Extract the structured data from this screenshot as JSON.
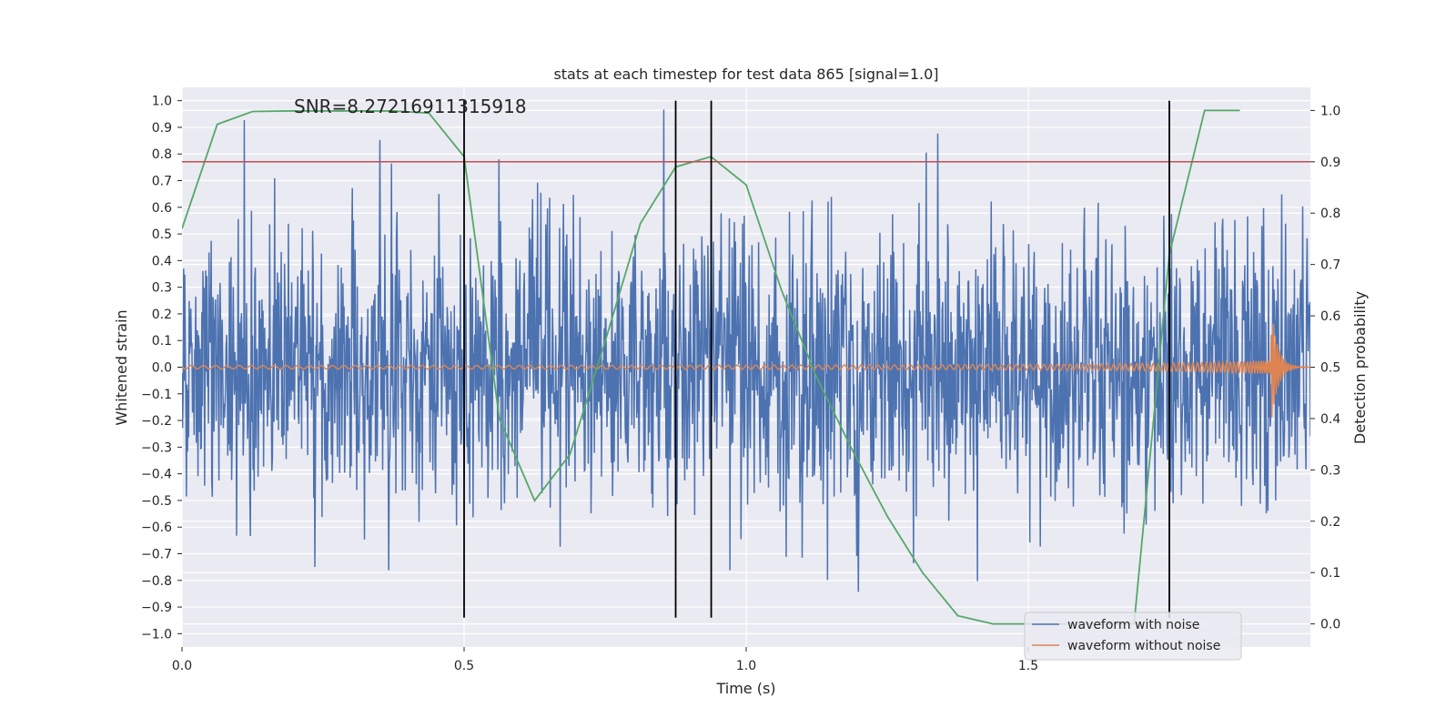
{
  "chart_data": {
    "type": "line",
    "title": "stats at each timestep for test data 865 [signal=1.0]",
    "annotation": "SNR=8.27216911315918",
    "xlabel": "Time (s)",
    "ylabel_left": "Whitened strain",
    "ylabel_right": "Detection probability",
    "xlim": [
      0.0,
      2.0
    ],
    "ylim_left": [
      -1.05,
      1.05
    ],
    "ylim_right": [
      -0.045,
      1.045
    ],
    "x_ticks": [
      0.0,
      0.5,
      1.0,
      1.5
    ],
    "x_tick_labels": [
      "0.0",
      "0.5",
      "1.0",
      "1.5"
    ],
    "y_left_ticks": [
      -1.0,
      -0.9,
      -0.8,
      -0.7,
      -0.6,
      -0.5,
      -0.4,
      -0.3,
      -0.2,
      -0.1,
      0.0,
      0.1,
      0.2,
      0.3,
      0.4,
      0.5,
      0.6,
      0.7,
      0.8,
      0.9,
      1.0
    ],
    "y_left_tick_labels": [
      "−1.0",
      "−0.9",
      "−0.8",
      "−0.7",
      "−0.6",
      "−0.5",
      "−0.4",
      "−0.3",
      "−0.2",
      "−0.1",
      "0.0",
      "0.1",
      "0.2",
      "0.3",
      "0.4",
      "0.5",
      "0.6",
      "0.7",
      "0.8",
      "0.9",
      "1.0"
    ],
    "y_right_ticks": [
      0.0,
      0.1,
      0.2,
      0.3,
      0.4,
      0.5,
      0.6,
      0.7,
      0.8,
      0.9,
      1.0
    ],
    "y_right_tick_labels": [
      "0.0",
      "0.1",
      "0.2",
      "0.3",
      "0.4",
      "0.5",
      "0.6",
      "0.7",
      "0.8",
      "0.9",
      "1.0"
    ],
    "grid": true,
    "legend_position": "lower-right",
    "threshold": {
      "value": 0.9,
      "axis": "right",
      "color": "#c44e52"
    },
    "event_markers": {
      "x": [
        0.5,
        0.875,
        0.938,
        1.75
      ],
      "y_range": [
        -0.94,
        1.0
      ],
      "color": "#000000"
    },
    "series": [
      {
        "name": "waveform with noise",
        "color": "#4c72b0",
        "axis": "left",
        "x_range": [
          0.0,
          2.0
        ],
        "samples": 2048,
        "description": "random noise, std ~0.27"
      },
      {
        "name": "waveform without noise",
        "color": "#dd8452",
        "axis": "left",
        "x_range": [
          0.0,
          2.0
        ],
        "samples": 2048,
        "description": "chirp signal, merger near 1.93 s"
      },
      {
        "name": "",
        "color": "#55a868",
        "axis": "right",
        "x": [
          0.0,
          0.0625,
          0.125,
          0.1875,
          0.25,
          0.3125,
          0.375,
          0.4375,
          0.5,
          0.5625,
          0.625,
          0.6875,
          0.75,
          0.8125,
          0.875,
          0.9375,
          1.0,
          1.0625,
          1.125,
          1.1875,
          1.25,
          1.3125,
          1.375,
          1.4375,
          1.5,
          1.5625,
          1.625,
          1.6875,
          1.75,
          1.8125,
          1.875
        ],
        "y": [
          0.77,
          0.973,
          0.998,
          0.999,
          0.999,
          0.999,
          0.999,
          0.995,
          0.91,
          0.4,
          0.24,
          0.33,
          0.55,
          0.78,
          0.89,
          0.91,
          0.855,
          0.65,
          0.48,
          0.34,
          0.21,
          0.1,
          0.016,
          0.0,
          0.0,
          0.0,
          0.0,
          0.0,
          0.72,
          1.0,
          1.0
        ]
      }
    ]
  }
}
